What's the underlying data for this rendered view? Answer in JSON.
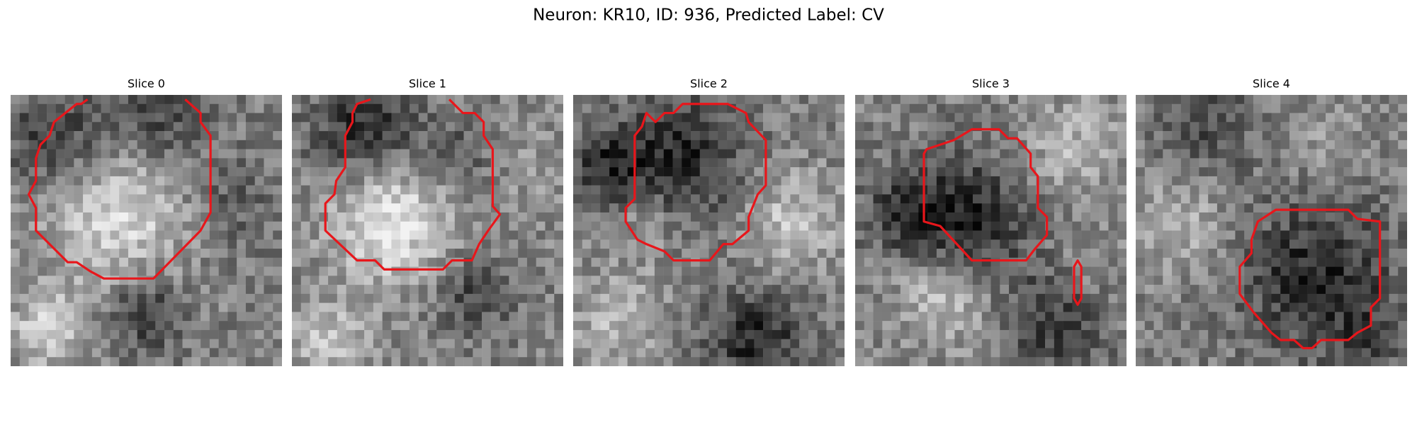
{
  "title": "Neuron: KR10, ID: 936, Predicted Label: CV",
  "panels": [
    {
      "title": "Slice 0"
    },
    {
      "title": "Slice 1"
    },
    {
      "title": "Slice 2"
    },
    {
      "title": "Slice 3"
    },
    {
      "title": "Slice 4"
    }
  ]
}
